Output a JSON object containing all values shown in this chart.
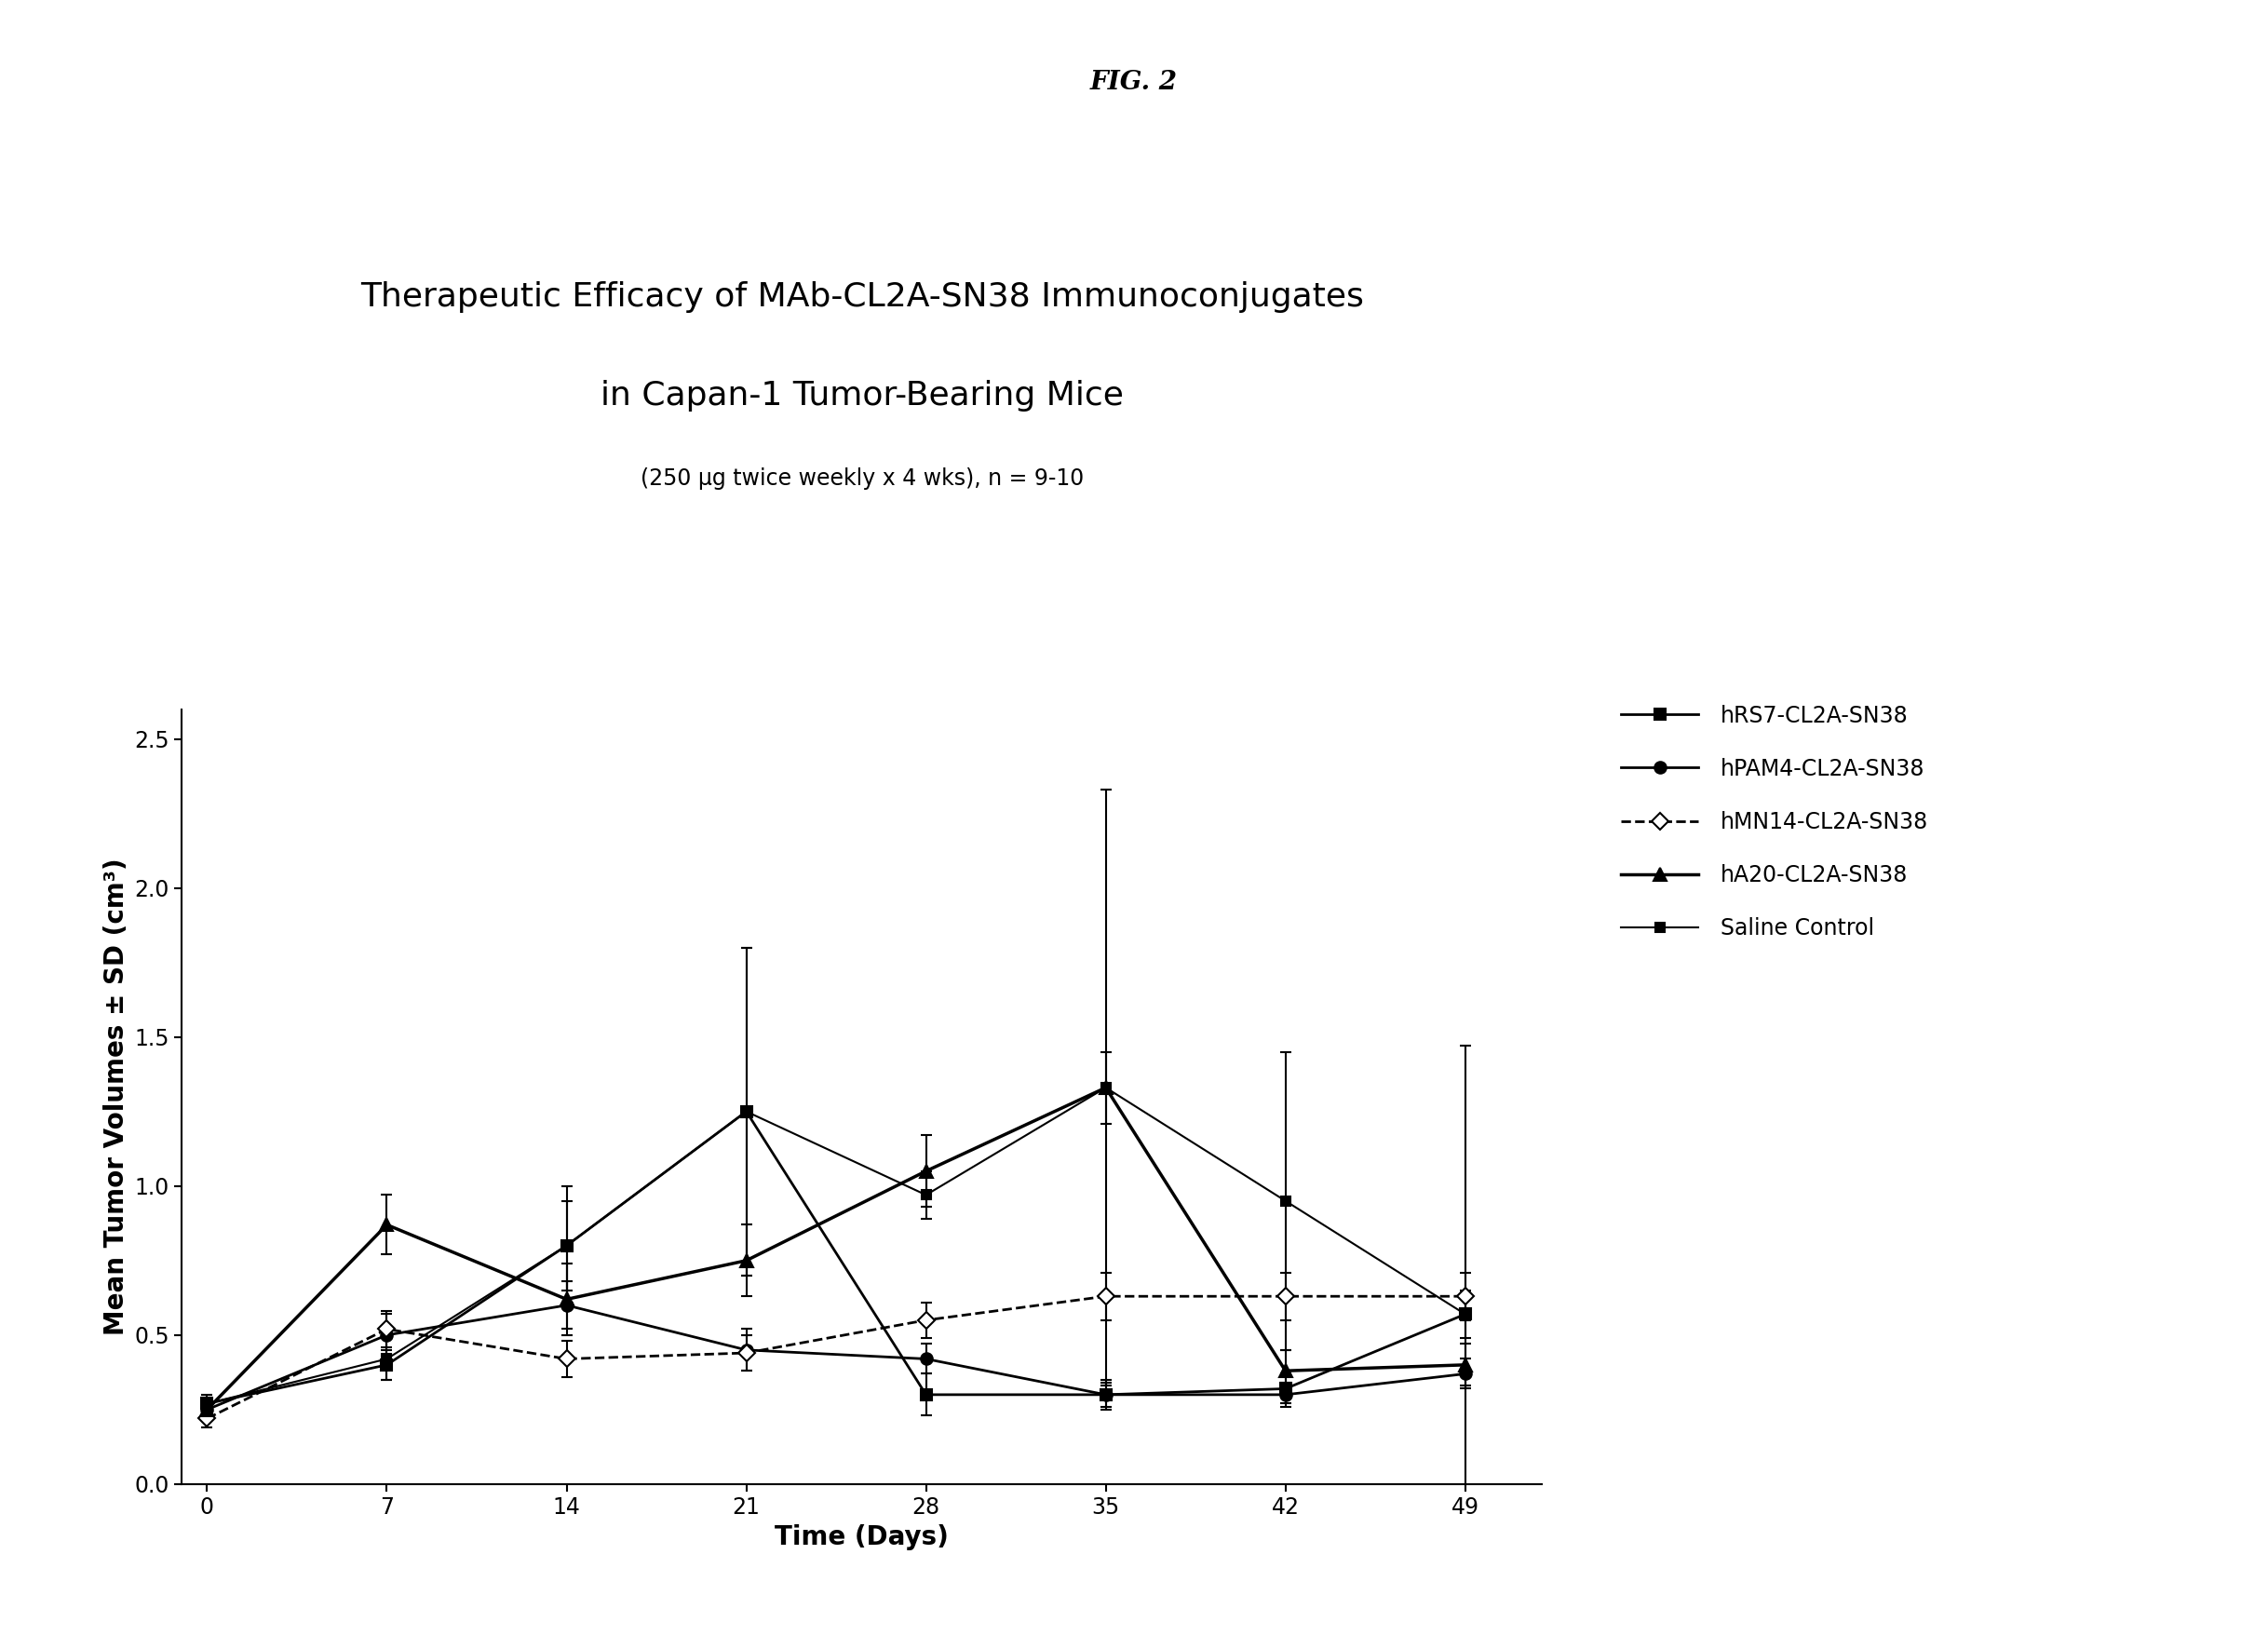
{
  "title_line1": "Therapeutic Efficacy of MAb-CL2A-SN38 Immunoconjugates",
  "title_line2": "in Capan-1 Tumor-Bearing Mice",
  "subtitle": "(250 μg twice weekly x 4 wks), n = 9-10",
  "fig_label": "FIG. 2",
  "xlabel": "Time (Days)",
  "ylabel": "Mean Tumor Volumes ± SD (cm³)",
  "xlim": [
    -1,
    52
  ],
  "ylim": [
    0.0,
    2.6
  ],
  "yticks": [
    0.0,
    0.5,
    1.0,
    1.5,
    2.0,
    2.5
  ],
  "xticks": [
    0,
    7,
    14,
    21,
    28,
    35,
    42,
    49
  ],
  "days": [
    0,
    7,
    14,
    21,
    28,
    35,
    42,
    49
  ],
  "series": {
    "hRS7": {
      "label": "hRS7-CL2A-SN38",
      "y": [
        0.27,
        0.4,
        0.8,
        1.25,
        0.3,
        0.3,
        0.32,
        0.57
      ],
      "yerr": [
        0.02,
        0.05,
        0.15,
        0.55,
        0.07,
        0.05,
        0.05,
        0.08
      ],
      "marker": "s",
      "linestyle": "-",
      "linewidth": 2.0,
      "color": "#000000",
      "markersize": 9,
      "fillstyle": "full"
    },
    "hPAM4": {
      "label": "hPAM4-CL2A-SN38",
      "y": [
        0.25,
        0.5,
        0.6,
        0.45,
        0.42,
        0.3,
        0.3,
        0.37
      ],
      "yerr": [
        0.03,
        0.07,
        0.08,
        0.07,
        0.05,
        0.04,
        0.04,
        0.05
      ],
      "marker": "o",
      "linestyle": "-",
      "linewidth": 2.0,
      "color": "#000000",
      "markersize": 9,
      "fillstyle": "full"
    },
    "hMN14": {
      "label": "hMN14-CL2A-SN38",
      "y": [
        0.22,
        0.52,
        0.42,
        0.44,
        0.55,
        0.63,
        0.63,
        0.63
      ],
      "yerr": [
        0.03,
        0.06,
        0.06,
        0.06,
        0.06,
        0.08,
        0.08,
        0.08
      ],
      "marker": "D",
      "linestyle": "--",
      "linewidth": 2.0,
      "color": "#000000",
      "markersize": 9,
      "fillstyle": "none"
    },
    "hA20": {
      "label": "hA20-CL2A-SN38",
      "y": [
        0.25,
        0.87,
        0.62,
        0.75,
        1.05,
        1.33,
        0.38,
        0.4
      ],
      "yerr": [
        0.03,
        0.1,
        0.12,
        0.12,
        0.12,
        0.12,
        0.07,
        0.07
      ],
      "marker": "^",
      "linestyle": "-",
      "linewidth": 2.5,
      "color": "#000000",
      "markersize": 10,
      "fillstyle": "full"
    },
    "saline": {
      "label": "Saline Control",
      "y": [
        0.27,
        0.42,
        0.8,
        1.25,
        0.97,
        1.33,
        0.95,
        0.57
      ],
      "yerr": [
        0.03,
        0.07,
        0.2,
        0.55,
        0.08,
        1.0,
        0.5,
        0.9
      ],
      "marker": "s",
      "linestyle": "-",
      "linewidth": 1.5,
      "color": "#000000",
      "markersize": 7,
      "fillstyle": "full"
    }
  },
  "background_color": "#ffffff",
  "legend_fontsize": 17,
  "axis_fontsize": 20,
  "tick_fontsize": 17,
  "title_fontsize": 26,
  "subtitle_fontsize": 17,
  "figlabel_fontsize": 20
}
